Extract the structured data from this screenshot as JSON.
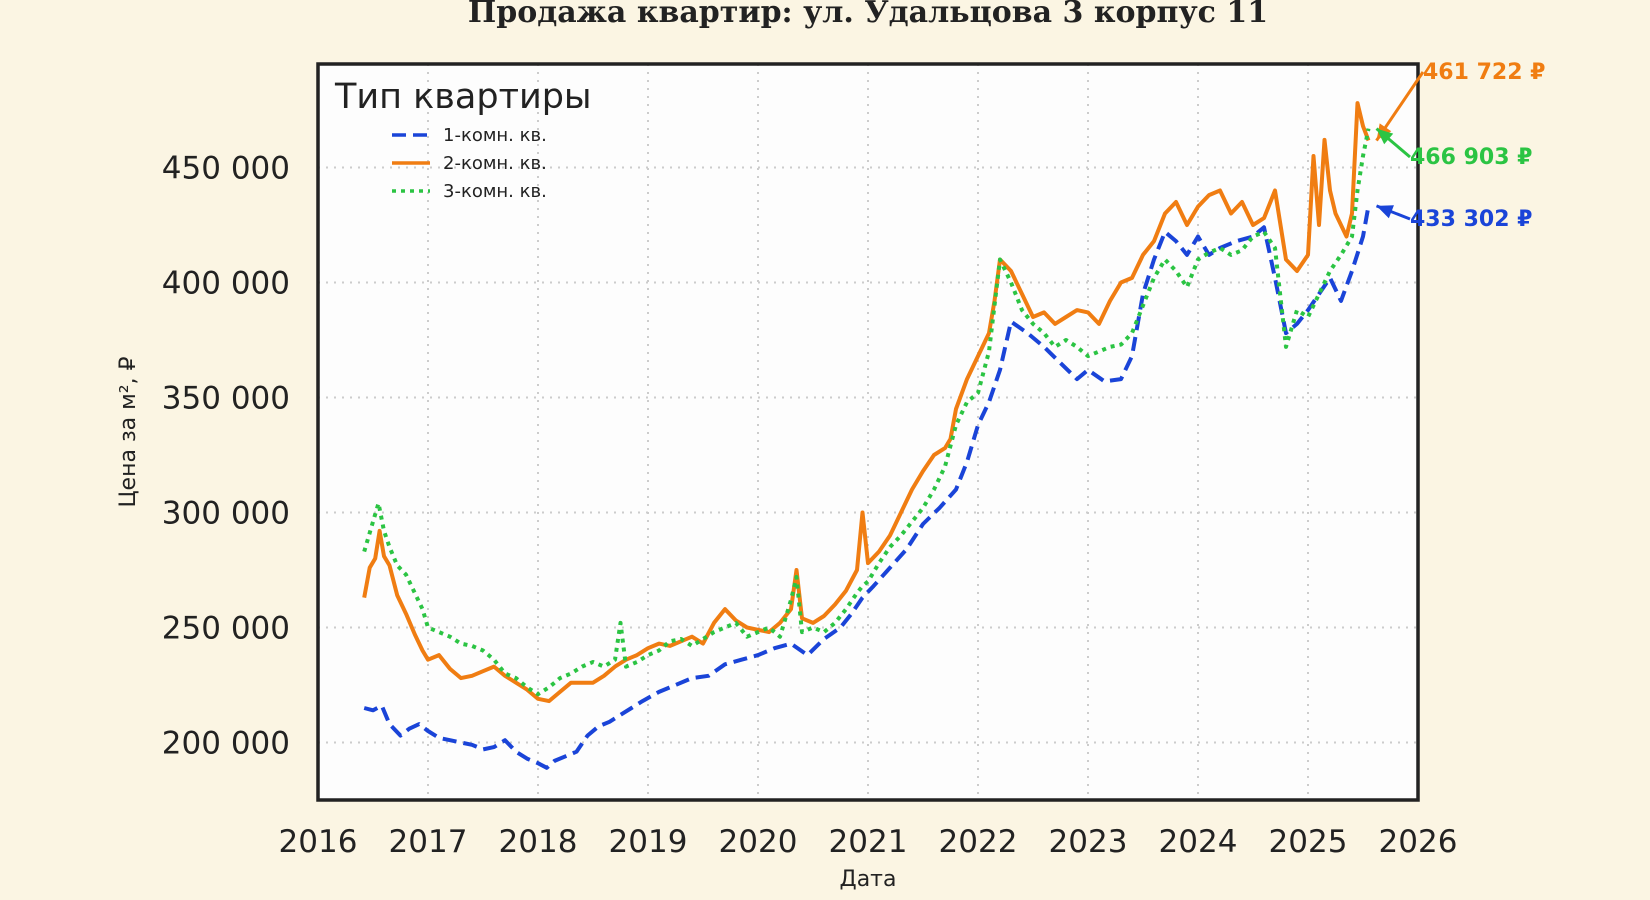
{
  "chart_data": {
    "type": "line",
    "title": "Продажа квартир: ул. Удальцова 3 корпус 11",
    "xlabel": "Дата",
    "ylabel": "Цена за м², ₽",
    "xlim": [
      2016,
      2026
    ],
    "ylim": [
      175000,
      495000
    ],
    "x_ticks": [
      2016,
      2017,
      2018,
      2019,
      2020,
      2021,
      2022,
      2023,
      2024,
      2025,
      2026
    ],
    "x_tick_labels": [
      "2016",
      "2017",
      "2018",
      "2019",
      "2020",
      "2021",
      "2022",
      "2023",
      "2024",
      "2025",
      "2026"
    ],
    "y_ticks": [
      200000,
      250000,
      300000,
      350000,
      400000,
      450000
    ],
    "y_tick_labels": [
      "200 000",
      "250 000",
      "300 000",
      "350 000",
      "400 000",
      "450 000"
    ],
    "grid": true,
    "legend": {
      "title": "Тип квартиры",
      "position": "top-left"
    },
    "series": [
      {
        "name": "1-комн. кв.",
        "color": "#1a44d8",
        "style": "dashed",
        "x": [
          2016.42,
          2016.5,
          2016.58,
          2016.65,
          2016.75,
          2016.83,
          2016.92,
          2017.0,
          2017.1,
          2017.2,
          2017.3,
          2017.4,
          2017.5,
          2017.6,
          2017.7,
          2017.8,
          2017.9,
          2018.0,
          2018.08,
          2018.15,
          2018.25,
          2018.35,
          2018.45,
          2018.55,
          2018.65,
          2018.75,
          2018.85,
          2018.95,
          2019.1,
          2019.25,
          2019.4,
          2019.55,
          2019.7,
          2019.85,
          2020.0,
          2020.15,
          2020.3,
          2020.45,
          2020.6,
          2020.75,
          2020.85,
          2020.95,
          2021.05,
          2021.2,
          2021.35,
          2021.5,
          2021.65,
          2021.8,
          2021.9,
          2022.0,
          2022.1,
          2022.2,
          2022.3,
          2022.45,
          2022.6,
          2022.75,
          2022.9,
          2023.0,
          2023.15,
          2023.3,
          2023.4,
          2023.5,
          2023.6,
          2023.7,
          2023.8,
          2023.9,
          2024.0,
          2024.1,
          2024.2,
          2024.35,
          2024.5,
          2024.6,
          2024.7,
          2024.8,
          2024.9,
          2025.0,
          2025.1,
          2025.2,
          2025.3,
          2025.4,
          2025.5,
          2025.55
        ],
        "y": [
          215000,
          214000,
          216000,
          208000,
          203000,
          206000,
          208000,
          205000,
          202000,
          201000,
          200000,
          199000,
          197000,
          198000,
          201000,
          196000,
          193000,
          191000,
          189000,
          192000,
          194000,
          196000,
          203000,
          207000,
          209000,
          212000,
          215000,
          218000,
          222000,
          225000,
          228000,
          229000,
          234000,
          236000,
          238000,
          241000,
          243000,
          238000,
          245000,
          250000,
          256000,
          263000,
          268000,
          276000,
          284000,
          295000,
          302000,
          310000,
          322000,
          338000,
          348000,
          362000,
          383000,
          378000,
          372000,
          365000,
          358000,
          362000,
          357000,
          358000,
          368000,
          395000,
          410000,
          422000,
          418000,
          412000,
          420000,
          412000,
          415000,
          418000,
          420000,
          424000,
          402000,
          378000,
          382000,
          388000,
          395000,
          402000,
          392000,
          405000,
          420000,
          433302
        ]
      },
      {
        "name": "2-комн. кв.",
        "color": "#f07d12",
        "style": "solid",
        "x": [
          2016.42,
          2016.47,
          2016.52,
          2016.56,
          2016.6,
          2016.65,
          2016.72,
          2016.8,
          2016.88,
          2016.95,
          2017.0,
          2017.1,
          2017.2,
          2017.3,
          2017.4,
          2017.5,
          2017.6,
          2017.7,
          2017.8,
          2017.9,
          2018.0,
          2018.1,
          2018.2,
          2018.3,
          2018.4,
          2018.5,
          2018.6,
          2018.7,
          2018.8,
          2018.9,
          2019.0,
          2019.1,
          2019.2,
          2019.3,
          2019.4,
          2019.5,
          2019.6,
          2019.7,
          2019.8,
          2019.9,
          2020.0,
          2020.1,
          2020.2,
          2020.3,
          2020.35,
          2020.4,
          2020.5,
          2020.6,
          2020.7,
          2020.8,
          2020.9,
          2020.95,
          2021.0,
          2021.1,
          2021.2,
          2021.3,
          2021.4,
          2021.5,
          2021.6,
          2021.7,
          2021.75,
          2021.8,
          2021.9,
          2022.0,
          2022.1,
          2022.15,
          2022.2,
          2022.3,
          2022.4,
          2022.5,
          2022.6,
          2022.7,
          2022.8,
          2022.9,
          2023.0,
          2023.1,
          2023.2,
          2023.3,
          2023.4,
          2023.5,
          2023.6,
          2023.7,
          2023.8,
          2023.9,
          2024.0,
          2024.1,
          2024.2,
          2024.3,
          2024.4,
          2024.5,
          2024.6,
          2024.7,
          2024.8,
          2024.9,
          2025.0,
          2025.05,
          2025.1,
          2025.15,
          2025.2,
          2025.25,
          2025.3,
          2025.35,
          2025.4,
          2025.45,
          2025.5,
          2025.55
        ],
        "y": [
          263000,
          276000,
          280000,
          292000,
          281000,
          277000,
          264000,
          256000,
          247000,
          240000,
          236000,
          238000,
          232000,
          228000,
          229000,
          231000,
          233000,
          229000,
          226000,
          223000,
          219000,
          218000,
          222000,
          226000,
          226000,
          226000,
          229000,
          233000,
          236000,
          238000,
          241000,
          243000,
          242000,
          244000,
          246000,
          243000,
          252000,
          258000,
          253000,
          250000,
          249000,
          248000,
          252000,
          258000,
          275000,
          254000,
          252000,
          255000,
          260000,
          266000,
          275000,
          300000,
          278000,
          283000,
          290000,
          300000,
          310000,
          318000,
          325000,
          328000,
          332000,
          345000,
          358000,
          368000,
          378000,
          392000,
          410000,
          405000,
          395000,
          385000,
          387000,
          382000,
          385000,
          388000,
          387000,
          382000,
          392000,
          400000,
          402000,
          412000,
          418000,
          430000,
          435000,
          425000,
          433000,
          438000,
          440000,
          430000,
          435000,
          425000,
          428000,
          440000,
          410000,
          405000,
          412000,
          455000,
          425000,
          462000,
          440000,
          430000,
          425000,
          420000,
          430000,
          478000,
          468000,
          461722
        ]
      },
      {
        "name": "3-комн. кв.",
        "color": "#2bc443",
        "style": "dotted",
        "x": [
          2016.42,
          2016.5,
          2016.55,
          2016.6,
          2016.65,
          2016.72,
          2016.8,
          2016.88,
          2016.95,
          2017.0,
          2017.1,
          2017.2,
          2017.3,
          2017.4,
          2017.5,
          2017.6,
          2017.7,
          2017.8,
          2017.9,
          2018.0,
          2018.1,
          2018.2,
          2018.3,
          2018.4,
          2018.5,
          2018.6,
          2018.7,
          2018.75,
          2018.8,
          2018.9,
          2019.0,
          2019.1,
          2019.2,
          2019.3,
          2019.4,
          2019.5,
          2019.6,
          2019.7,
          2019.8,
          2019.9,
          2020.0,
          2020.1,
          2020.2,
          2020.3,
          2020.35,
          2020.4,
          2020.5,
          2020.6,
          2020.7,
          2020.8,
          2020.9,
          2020.95,
          2021.0,
          2021.1,
          2021.2,
          2021.3,
          2021.4,
          2021.5,
          2021.6,
          2021.7,
          2021.8,
          2021.9,
          2022.0,
          2022.1,
          2022.2,
          2022.3,
          2022.4,
          2022.5,
          2022.6,
          2022.7,
          2022.8,
          2022.9,
          2023.0,
          2023.1,
          2023.2,
          2023.3,
          2023.4,
          2023.5,
          2023.6,
          2023.7,
          2023.8,
          2023.9,
          2024.0,
          2024.1,
          2024.2,
          2024.3,
          2024.4,
          2024.5,
          2024.6,
          2024.7,
          2024.8,
          2024.9,
          2025.0,
          2025.1,
          2025.2,
          2025.3,
          2025.4,
          2025.45,
          2025.5,
          2025.55
        ],
        "y": [
          283000,
          296000,
          304000,
          292000,
          285000,
          277000,
          273000,
          265000,
          258000,
          250000,
          248000,
          246000,
          243000,
          242000,
          240000,
          236000,
          230000,
          228000,
          224000,
          221000,
          224000,
          228000,
          230000,
          233000,
          235000,
          233000,
          236000,
          252000,
          233000,
          235000,
          238000,
          240000,
          244000,
          245000,
          242000,
          245000,
          248000,
          250000,
          252000,
          246000,
          248000,
          250000,
          246000,
          262000,
          272000,
          248000,
          250000,
          248000,
          252000,
          258000,
          265000,
          268000,
          270000,
          278000,
          285000,
          290000,
          296000,
          302000,
          310000,
          320000,
          338000,
          348000,
          352000,
          370000,
          410000,
          400000,
          388000,
          382000,
          378000,
          372000,
          375000,
          372000,
          368000,
          370000,
          372000,
          373000,
          378000,
          390000,
          402000,
          410000,
          405000,
          398000,
          410000,
          413000,
          415000,
          412000,
          414000,
          420000,
          422000,
          415000,
          372000,
          388000,
          385000,
          395000,
          405000,
          412000,
          420000,
          440000,
          455000,
          466903
        ]
      }
    ],
    "annotations": [
      {
        "series": "2-комн. кв.",
        "text": "461 722 ₽",
        "x": 2025.55,
        "y": 461722,
        "color": "#f07d12"
      },
      {
        "series": "3-комн. кв.",
        "text": "466 903 ₽",
        "x": 2025.55,
        "y": 466903,
        "color": "#2bc443"
      },
      {
        "series": "1-комн. кв.",
        "text": "433 302 ₽",
        "x": 2025.55,
        "y": 433302,
        "color": "#1a44d8"
      }
    ]
  }
}
